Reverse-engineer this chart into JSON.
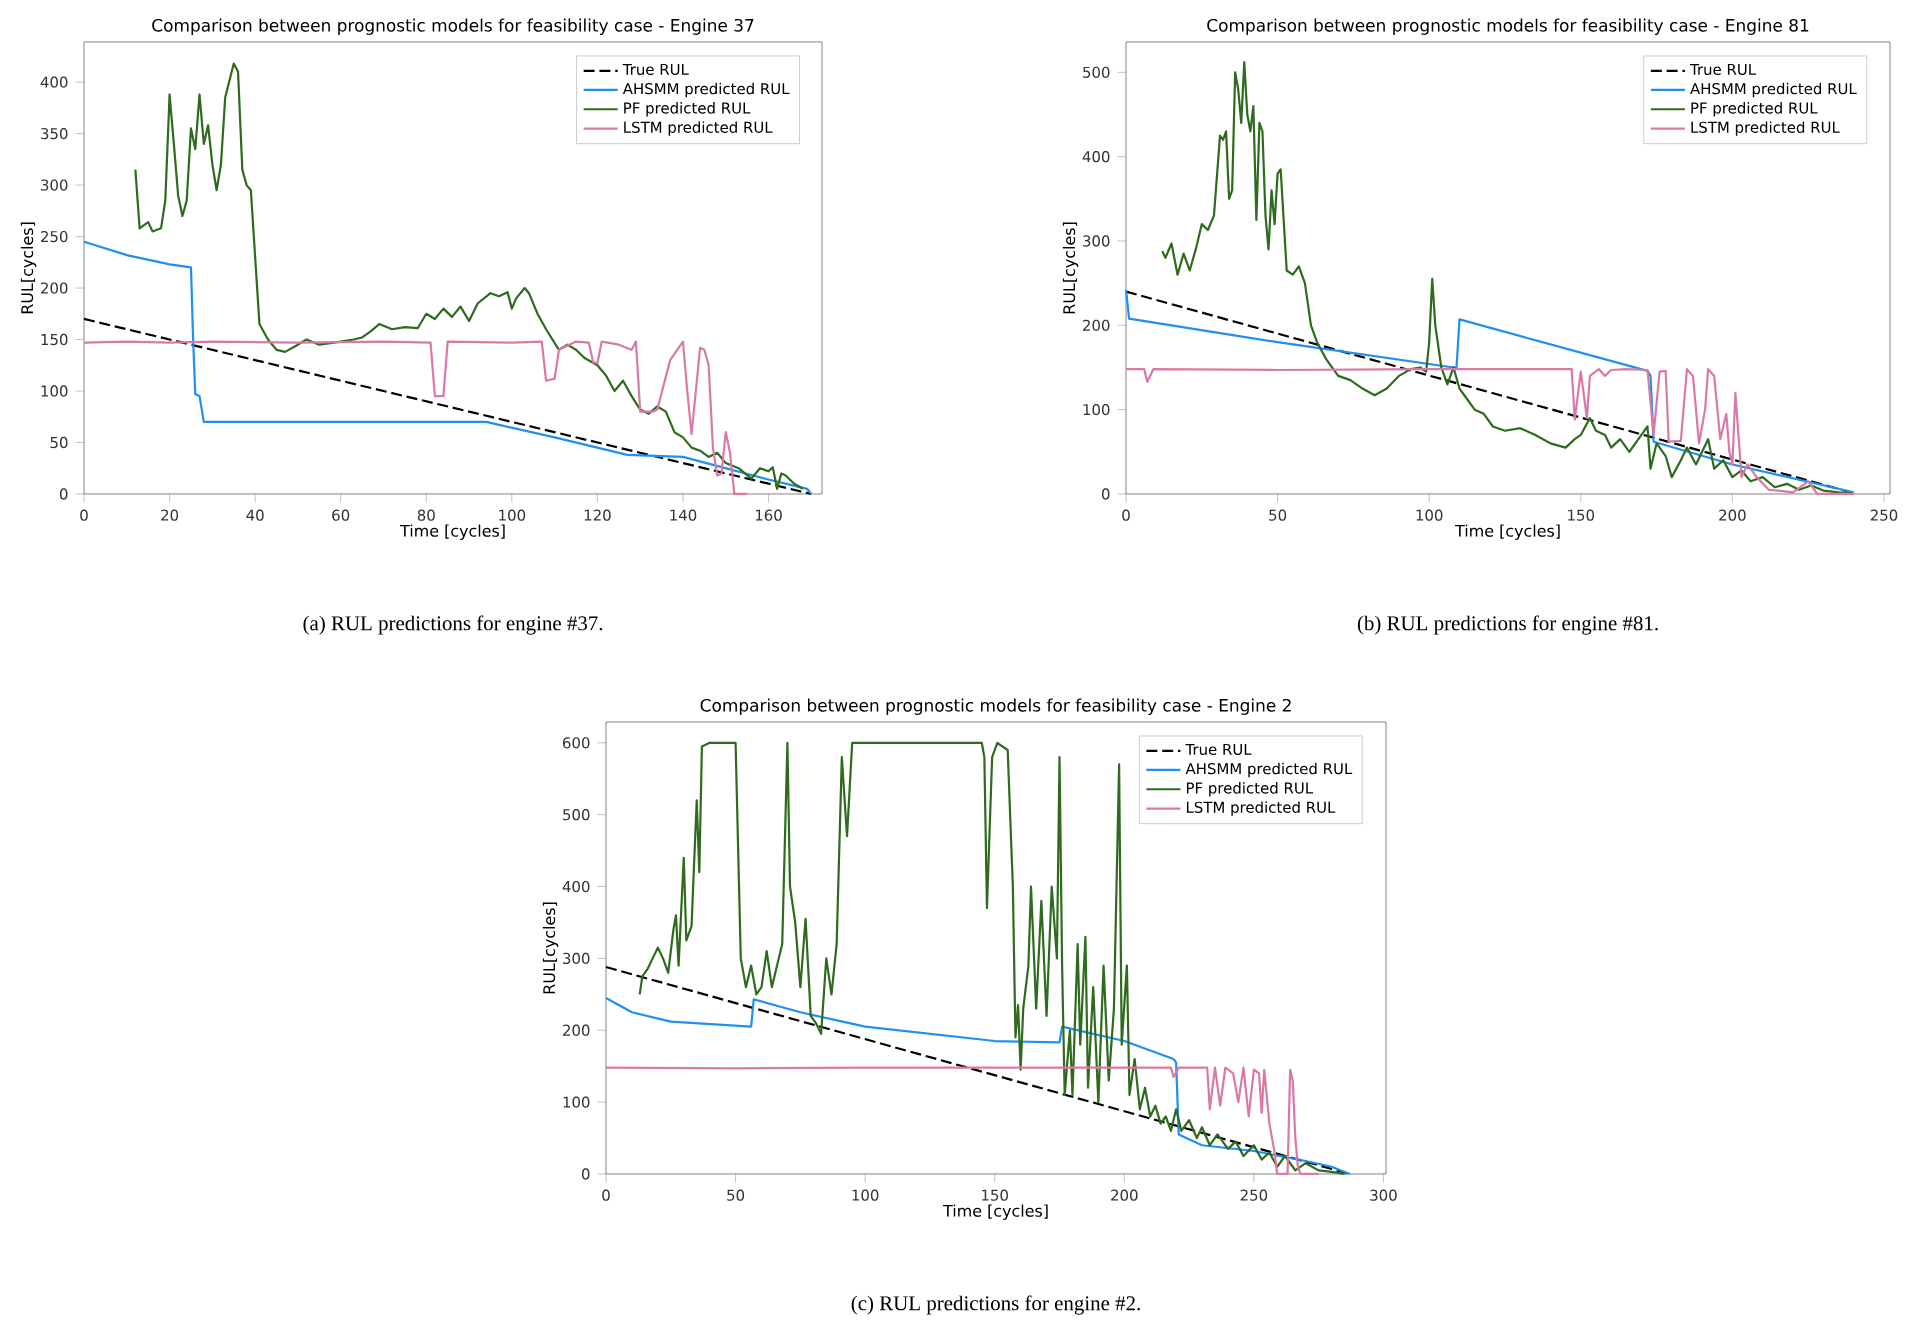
{
  "chart_data": [
    {
      "type": "line",
      "title": "Comparison between prognostic models for feasibility case - Engine 37",
      "xlabel": "Time [cycles]",
      "ylabel": "RUL[cycles]",
      "xlim": [
        0,
        172.5
      ],
      "xticks": [
        0,
        20,
        40,
        60,
        80,
        100,
        120,
        140,
        160
      ],
      "ylim": [
        0,
        439
      ],
      "yticks": [
        0,
        50,
        100,
        150,
        200,
        250,
        300,
        350,
        400
      ],
      "grid": false,
      "legend": "top right",
      "annotations": [
        "(a) RUL predictions for engine #37."
      ],
      "series": [
        {
          "name": "True RUL",
          "color": "#000000",
          "line_style": "dashed",
          "x": [
            0,
            170
          ],
          "values": [
            170,
            0
          ]
        },
        {
          "name": "AHSMM predicted RUL",
          "color": "#1f8ff0",
          "line_style": "solid",
          "x": [
            0,
            10,
            20,
            25,
            25.5,
            26,
            27,
            28,
            94,
            110,
            127,
            140,
            160,
            169,
            170
          ],
          "values": [
            245,
            232,
            223,
            220,
            150,
            97,
            95,
            70,
            70,
            55,
            38,
            36,
            14,
            5,
            0
          ]
        },
        {
          "name": "PF predicted RUL",
          "color": "#2e6b1f",
          "line_style": "solid",
          "x": [
            12,
            13,
            15,
            16,
            18,
            19,
            20,
            21,
            22,
            23,
            24,
            25,
            26,
            27,
            28,
            29,
            30,
            31,
            32,
            33,
            35,
            36,
            37,
            38,
            39,
            40,
            41,
            43,
            45,
            47,
            50,
            52,
            55,
            60,
            63,
            65,
            67,
            69,
            72,
            75,
            78,
            80,
            82,
            84,
            86,
            88,
            90,
            92,
            95,
            97,
            99,
            100,
            101,
            103,
            104,
            106,
            108,
            111,
            113,
            115,
            117,
            120,
            122,
            124,
            126,
            128,
            130,
            132,
            134,
            136,
            138,
            140,
            142,
            144,
            146,
            148,
            150,
            153,
            156,
            158,
            160,
            161,
            162,
            163,
            164,
            166,
            168
          ],
          "values": [
            315,
            258,
            264,
            255,
            258,
            285,
            388,
            340,
            290,
            270,
            285,
            355,
            335,
            388,
            340,
            358,
            320,
            295,
            320,
            385,
            418,
            410,
            315,
            300,
            295,
            230,
            165,
            150,
            140,
            138,
            145,
            150,
            145,
            148,
            150,
            152,
            158,
            165,
            160,
            162,
            161,
            175,
            170,
            180,
            172,
            182,
            168,
            185,
            195,
            192,
            196,
            180,
            190,
            200,
            195,
            175,
            160,
            140,
            145,
            140,
            132,
            125,
            115,
            100,
            110,
            95,
            82,
            78,
            85,
            80,
            60,
            55,
            45,
            42,
            36,
            40,
            30,
            25,
            15,
            25,
            22,
            26,
            5,
            20,
            18,
            10,
            5
          ]
        },
        {
          "name": "LSTM predicted RUL",
          "color": "#d97aa6",
          "line_style": "solid",
          "x": [
            0,
            10,
            20,
            30,
            50,
            70,
            81,
            82,
            84,
            85,
            100,
            107,
            108,
            110,
            111,
            115,
            118,
            119,
            120,
            121,
            125,
            128,
            129,
            130,
            133,
            134,
            137,
            140,
            141,
            142,
            143,
            144,
            145,
            146,
            147,
            148,
            149,
            150,
            151,
            152,
            155
          ],
          "values": [
            147,
            148,
            147,
            148,
            147,
            148,
            147,
            95,
            95,
            148,
            147,
            148,
            110,
            112,
            140,
            148,
            147,
            128,
            127,
            148,
            145,
            140,
            148,
            80,
            80,
            82,
            130,
            148,
            100,
            58,
            100,
            142,
            140,
            125,
            45,
            18,
            20,
            60,
            40,
            0,
            0
          ]
        }
      ]
    },
    {
      "type": "line",
      "title": "Comparison between prognostic models for feasibility case - Engine 81",
      "xlabel": "Time [cycles]",
      "ylabel": "RUL[cycles]",
      "xlim": [
        0,
        252
      ],
      "xticks": [
        0,
        50,
        100,
        150,
        200,
        250
      ],
      "ylim": [
        0,
        536
      ],
      "yticks": [
        0,
        100,
        200,
        300,
        400,
        500
      ],
      "grid": false,
      "legend": "top right",
      "annotations": [
        "(b) RUL predictions for engine #81."
      ],
      "series": [
        {
          "name": "True RUL",
          "color": "#000000",
          "line_style": "dashed",
          "x": [
            0,
            241
          ],
          "values": [
            240,
            0
          ]
        },
        {
          "name": "AHSMM predicted RUL",
          "color": "#1f8ff0",
          "line_style": "solid",
          "x": [
            0,
            1,
            50,
            108,
            109,
            110,
            172,
            173,
            174,
            200,
            240
          ],
          "values": [
            242,
            208,
            180,
            150,
            150,
            207,
            146,
            140,
            62,
            35,
            2
          ]
        },
        {
          "name": "PF predicted RUL",
          "color": "#2e6b1f",
          "line_style": "solid",
          "x": [
            12,
            13,
            15,
            17,
            19,
            21,
            23,
            25,
            27,
            29,
            31,
            32,
            33,
            34,
            35,
            36,
            37,
            38,
            39,
            40,
            41,
            42,
            43,
            44,
            45,
            46,
            47,
            48,
            49,
            50,
            51,
            53,
            55,
            57,
            59,
            61,
            63,
            66,
            70,
            74,
            78,
            82,
            86,
            90,
            94,
            97,
            99,
            100,
            101,
            102,
            104,
            106,
            108,
            110,
            112,
            115,
            118,
            121,
            125,
            130,
            135,
            140,
            145,
            148,
            150,
            153,
            155,
            158,
            160,
            163,
            166,
            170,
            172,
            173,
            175,
            178,
            180,
            183,
            185,
            188,
            190,
            192,
            194,
            197,
            200,
            203,
            206,
            210,
            214,
            218,
            222,
            226,
            230,
            235,
            240
          ],
          "values": [
            288,
            280,
            297,
            260,
            285,
            265,
            290,
            320,
            313,
            330,
            425,
            420,
            430,
            350,
            360,
            500,
            480,
            440,
            512,
            450,
            430,
            460,
            325,
            440,
            430,
            330,
            290,
            360,
            320,
            380,
            385,
            265,
            260,
            270,
            250,
            200,
            180,
            160,
            140,
            135,
            125,
            117,
            125,
            140,
            148,
            150,
            145,
            180,
            255,
            200,
            150,
            130,
            150,
            125,
            115,
            100,
            95,
            80,
            75,
            78,
            70,
            60,
            55,
            65,
            70,
            90,
            75,
            70,
            55,
            65,
            50,
            70,
            80,
            30,
            60,
            45,
            20,
            40,
            55,
            35,
            50,
            65,
            30,
            40,
            20,
            28,
            15,
            20,
            8,
            12,
            5,
            10,
            4,
            2,
            0
          ]
        },
        {
          "name": "LSTM predicted RUL",
          "color": "#d97aa6",
          "line_style": "solid",
          "x": [
            0,
            6,
            7,
            9,
            50,
            100,
            147,
            148,
            150,
            152,
            153,
            156,
            158,
            160,
            165,
            172,
            174,
            176,
            178,
            179,
            183,
            185,
            187,
            189,
            191,
            192,
            194,
            196,
            198,
            199,
            200,
            201,
            203,
            205,
            208,
            212,
            220,
            225,
            228,
            240
          ],
          "values": [
            148,
            148,
            133,
            148,
            147,
            148,
            148,
            88,
            145,
            90,
            140,
            148,
            140,
            147,
            148,
            147,
            70,
            145,
            146,
            62,
            63,
            148,
            140,
            60,
            100,
            148,
            140,
            65,
            95,
            50,
            35,
            120,
            20,
            35,
            20,
            5,
            2,
            15,
            0,
            0
          ]
        }
      ]
    },
    {
      "type": "line",
      "title": "Comparison between prognostic models for feasibility case - Engine 2",
      "xlabel": "Time [cycles]",
      "ylabel": "RUL[cycles]",
      "xlim": [
        0,
        301
      ],
      "xticks": [
        0,
        50,
        100,
        150,
        200,
        250,
        300
      ],
      "ylim": [
        0,
        629
      ],
      "yticks": [
        0,
        100,
        200,
        300,
        400,
        500,
        600
      ],
      "grid": false,
      "legend": "top right",
      "annotations": [
        "(c) RUL predictions for engine #2."
      ],
      "series": [
        {
          "name": "True RUL",
          "color": "#000000",
          "line_style": "dashed",
          "x": [
            0,
            287
          ],
          "values": [
            288,
            0
          ]
        },
        {
          "name": "AHSMM predicted RUL",
          "color": "#1f8ff0",
          "line_style": "solid",
          "x": [
            0,
            10,
            25,
            56,
            57,
            75,
            100,
            150,
            175,
            176,
            200,
            219,
            220,
            221,
            230,
            250,
            270,
            280,
            287
          ],
          "values": [
            245,
            225,
            212,
            205,
            243,
            225,
            205,
            185,
            183,
            205,
            185,
            160,
            155,
            55,
            40,
            32,
            18,
            10,
            0
          ]
        },
        {
          "name": "PF predicted RUL",
          "color": "#2e6b1f",
          "line_style": "solid",
          "x": [
            13,
            14,
            16,
            18,
            20,
            22,
            24,
            26,
            27,
            28,
            30,
            31,
            33,
            35,
            36,
            37,
            40,
            50,
            52,
            54,
            56,
            58,
            60,
            62,
            64,
            66,
            68,
            70,
            71,
            73,
            75,
            77,
            79,
            81,
            83,
            85,
            87,
            89,
            91,
            93,
            95,
            145,
            146,
            147,
            149,
            151,
            155,
            157,
            158,
            159,
            160,
            161,
            163,
            164,
            166,
            168,
            170,
            172,
            174,
            175,
            176,
            177,
            179,
            180,
            182,
            183,
            185,
            186,
            188,
            190,
            192,
            194,
            196,
            198,
            199,
            201,
            202,
            204,
            206,
            208,
            210,
            212,
            214,
            216,
            218,
            220,
            222,
            225,
            228,
            230,
            233,
            236,
            240,
            243,
            246,
            250,
            253,
            256,
            259,
            262,
            266,
            270,
            275,
            280,
            285
          ],
          "values": [
            250,
            275,
            285,
            300,
            315,
            300,
            280,
            340,
            360,
            290,
            440,
            325,
            345,
            520,
            420,
            595,
            600,
            600,
            300,
            260,
            290,
            250,
            260,
            310,
            260,
            290,
            320,
            600,
            400,
            350,
            260,
            355,
            220,
            210,
            195,
            300,
            250,
            320,
            580,
            470,
            600,
            600,
            580,
            370,
            580,
            600,
            590,
            400,
            190,
            235,
            145,
            230,
            290,
            400,
            230,
            380,
            220,
            400,
            300,
            580,
            290,
            110,
            200,
            110,
            320,
            180,
            330,
            120,
            260,
            100,
            290,
            130,
            230,
            570,
            180,
            290,
            110,
            160,
            90,
            120,
            80,
            95,
            70,
            80,
            60,
            90,
            60,
            75,
            50,
            65,
            40,
            55,
            35,
            45,
            25,
            40,
            20,
            30,
            10,
            25,
            5,
            15,
            5,
            3,
            0
          ]
        },
        {
          "name": "LSTM predicted RUL",
          "color": "#d97aa6",
          "line_style": "solid",
          "x": [
            0,
            50,
            100,
            150,
            218,
            219,
            221,
            232,
            233,
            235,
            237,
            239,
            242,
            244,
            246,
            248,
            250,
            252,
            253,
            254,
            256,
            258,
            259,
            263,
            264,
            265,
            266,
            267,
            268,
            275
          ],
          "values": [
            148,
            147,
            148,
            148,
            148,
            135,
            148,
            148,
            90,
            148,
            95,
            148,
            140,
            100,
            148,
            80,
            145,
            140,
            85,
            145,
            70,
            30,
            0,
            0,
            145,
            130,
            50,
            10,
            0,
            0
          ]
        }
      ]
    }
  ]
}
